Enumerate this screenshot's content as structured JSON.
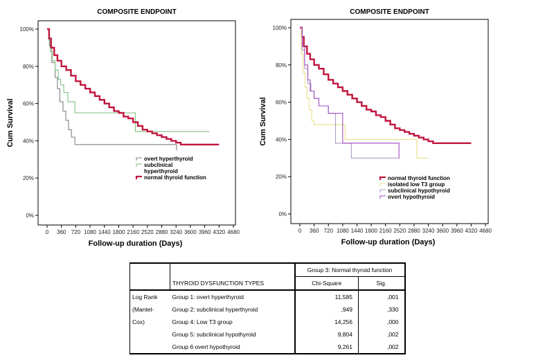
{
  "chart_data": [
    {
      "type": "line",
      "title": "COMPOSITE ENDPOINT",
      "xlabel": "Follow-up duration (Days)",
      "ylabel": "Cum Survival",
      "xlim": [
        0,
        4680
      ],
      "ylim": [
        0,
        100
      ],
      "x_ticks": [
        "0",
        "360",
        "720",
        "1080",
        "1440",
        "1800",
        "2160",
        "2520",
        "2880",
        "3240",
        "3600",
        "3960",
        "4320",
        "4680"
      ],
      "y_ticks": [
        "0%",
        "20%",
        "40%",
        "60%",
        "80%",
        "100%"
      ],
      "series": [
        {
          "name": "overt hyperthyroid",
          "color": "#808080",
          "x": [
            0,
            60,
            120,
            200,
            260,
            320,
            400,
            470,
            540,
            610,
            700,
            820,
            3250
          ],
          "y": [
            100,
            91,
            82,
            74,
            68,
            61,
            56,
            51,
            46,
            42,
            38,
            38,
            35
          ]
        },
        {
          "name": "subclinical hyperthyroid",
          "color": "#7fbf7f",
          "x": [
            0,
            40,
            80,
            130,
            200,
            280,
            340,
            420,
            520,
            700,
            2160,
            2220,
            4080
          ],
          "y": [
            100,
            94,
            88,
            83,
            78,
            73,
            70,
            66,
            61,
            55,
            55,
            45,
            45
          ]
        },
        {
          "name": "normal thyroid function",
          "color": "#c0143c",
          "x": [
            0,
            50,
            100,
            180,
            260,
            360,
            480,
            600,
            720,
            840,
            960,
            1080,
            1200,
            1320,
            1440,
            1560,
            1680,
            1800,
            1920,
            2040,
            2160,
            2280,
            2400,
            2520,
            2640,
            2760,
            2880,
            3000,
            3120,
            3240,
            3360,
            4320
          ],
          "y": [
            100,
            95,
            90,
            86,
            83,
            80,
            78,
            75,
            72,
            70,
            68,
            66,
            64,
            62,
            60,
            58,
            56,
            55,
            53,
            52,
            50,
            48,
            46,
            45,
            44,
            43,
            42,
            41,
            40,
            39,
            38,
            38
          ]
        }
      ]
    },
    {
      "type": "line",
      "title": "COMPOSITE ENDPOINT",
      "xlabel": "Follow-up duration (Days)",
      "ylabel": "Cum Survival",
      "xlim": [
        0,
        4680
      ],
      "ylim": [
        0,
        100
      ],
      "x_ticks": [
        "0",
        "360",
        "720",
        "1080",
        "1440",
        "1800",
        "2160",
        "2520",
        "2880",
        "3240",
        "3600",
        "3960",
        "4320",
        "4680"
      ],
      "y_ticks": [
        "0%",
        "20%",
        "40%",
        "60%",
        "80%",
        "100%"
      ],
      "series": [
        {
          "name": "normal thyroid function",
          "color": "#c0143c",
          "x": [
            0,
            50,
            100,
            180,
            260,
            360,
            480,
            600,
            720,
            840,
            960,
            1080,
            1200,
            1320,
            1440,
            1560,
            1680,
            1800,
            1920,
            2040,
            2160,
            2280,
            2400,
            2520,
            2640,
            2760,
            2880,
            3000,
            3120,
            3240,
            3360,
            4320
          ],
          "y": [
            100,
            95,
            90,
            86,
            83,
            80,
            78,
            75,
            72,
            70,
            68,
            66,
            64,
            62,
            60,
            58,
            56,
            55,
            53,
            52,
            50,
            48,
            46,
            45,
            44,
            43,
            42,
            41,
            40,
            39,
            38,
            38
          ]
        },
        {
          "name": "isolated low T3 group",
          "color": "#e8e08a",
          "x": [
            0,
            40,
            80,
            130,
            180,
            240,
            300,
            360,
            1080,
            1140,
            2880,
            2950,
            3240
          ],
          "y": [
            100,
            86,
            76,
            68,
            62,
            56,
            50,
            48,
            48,
            40,
            40,
            30,
            30
          ]
        },
        {
          "name": "subclinical hypothyroid",
          "color": "#b09ac8",
          "x": [
            0,
            60,
            120,
            200,
            280,
            360,
            480,
            720,
            900,
            1260,
            1300,
            2520
          ],
          "y": [
            100,
            88,
            78,
            70,
            66,
            62,
            58,
            54,
            38,
            38,
            30,
            30
          ]
        },
        {
          "name": "overt hypothyroid",
          "color": "#a04ec0",
          "x": [
            0,
            60,
            120,
            200,
            260,
            360,
            480,
            720,
            1000,
            1080,
            2440,
            2500
          ],
          "y": [
            100,
            90,
            80,
            72,
            66,
            62,
            58,
            54,
            54,
            38,
            38,
            30
          ]
        }
      ]
    }
  ],
  "table": {
    "group_header": "Group 3: Normal thyroid function",
    "col_types": "THYROID DYSFUNCTION TYPES",
    "col_chi": "Chi-Square",
    "col_sig": "Sig.",
    "row_label_1": "Log Rank",
    "row_label_2": "(Mantel-",
    "row_label_3": "Cox)",
    "rows": [
      {
        "group": "Group 1: overt hyperthyroid",
        "chi": "11,585",
        "sig": ",001"
      },
      {
        "group": "Group 2: subclinical hyperthyroid",
        "chi": ",949",
        "sig": ",330"
      },
      {
        "group": "Group 4: Low T3 group",
        "chi": "14,256",
        "sig": ",000"
      },
      {
        "group": "Group 5: subclinical hypothyroid",
        "chi": "9,804",
        "sig": ",002"
      },
      {
        "group": "Group 6 overt hypothyroid",
        "chi": "9,261",
        "sig": ",002"
      }
    ]
  }
}
